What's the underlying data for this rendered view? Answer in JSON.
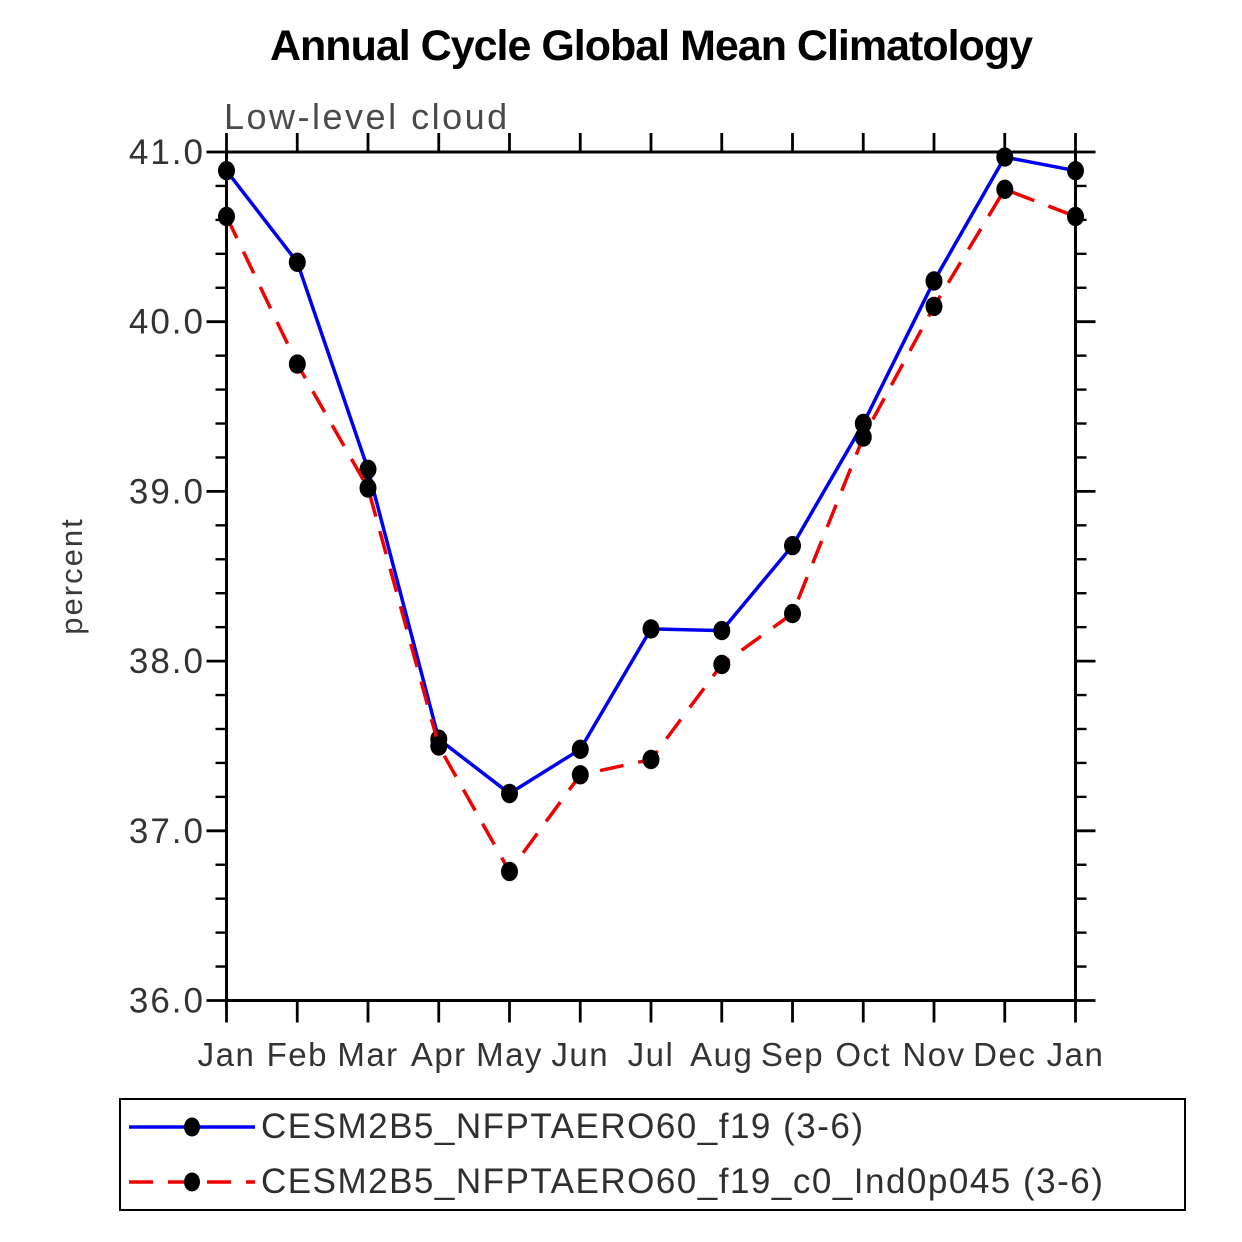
{
  "title": "Annual Cycle Global Mean Climatology",
  "subtitle": "Low-level cloud",
  "y_axis_title": "percent",
  "colors": {
    "series1_line": "#0000f0",
    "series2_line": "#f00000",
    "marker": "#000000",
    "axis": "#000000",
    "title_text": "#000000",
    "subtitle_text": "#4a4a4a",
    "tick_label_text": "#333333"
  },
  "chart_data": {
    "type": "line",
    "title": "Annual Cycle Global Mean Climatology",
    "subtitle": "Low-level cloud",
    "xlabel": "",
    "ylabel": "percent",
    "categories": [
      "Jan",
      "Feb",
      "Mar",
      "Apr",
      "May",
      "Jun",
      "Jul",
      "Aug",
      "Sep",
      "Oct",
      "Nov",
      "Dec",
      "Jan"
    ],
    "ylim": [
      36.0,
      41.0
    ],
    "ytick_labels": [
      "36.0",
      "37.0",
      "38.0",
      "39.0",
      "40.0",
      "41.0"
    ],
    "ytick_major_step": 1.0,
    "ytick_minor_step": 0.2,
    "grid": false,
    "legend_position": "bottom",
    "series": [
      {
        "name": "CESM2B5_NFPTAERO60_f19 (3-6)",
        "line_style": "solid",
        "color": "#0000f0",
        "marker": "circle",
        "marker_color": "#000000",
        "values": [
          40.89,
          40.35,
          39.13,
          37.54,
          37.22,
          37.48,
          38.19,
          38.18,
          38.68,
          39.4,
          40.24,
          40.97,
          40.89
        ]
      },
      {
        "name": "CESM2B5_NFPTAERO60_f19_c0_Ind0p045 (3-6)",
        "line_style": "dashed",
        "color": "#f00000",
        "marker": "circle",
        "marker_color": "#000000",
        "values": [
          40.62,
          39.75,
          39.02,
          37.5,
          36.76,
          37.33,
          37.42,
          37.98,
          38.28,
          39.32,
          40.09,
          40.78,
          40.62
        ]
      }
    ]
  }
}
